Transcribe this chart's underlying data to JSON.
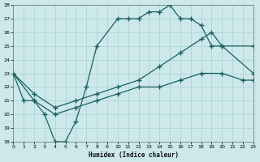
{
  "xlabel": "Humidex (Indice chaleur)",
  "bg_color": "#cce8ea",
  "grid_color": "#aad0d4",
  "line_color": "#1a6060",
  "xlim": [
    0,
    23
  ],
  "ylim": [
    18,
    28
  ],
  "xticks": [
    0,
    1,
    2,
    3,
    4,
    5,
    6,
    7,
    8,
    9,
    10,
    11,
    12,
    13,
    14,
    15,
    16,
    17,
    18,
    19,
    20,
    21,
    22,
    23
  ],
  "yticks": [
    18,
    19,
    20,
    21,
    22,
    23,
    24,
    25,
    26,
    27,
    28
  ],
  "line1_x": [
    0,
    1,
    2,
    3,
    4,
    5,
    6,
    7,
    8,
    10,
    11,
    12,
    13,
    14,
    15,
    16,
    17,
    18,
    19,
    20,
    23
  ],
  "line1_y": [
    23,
    21,
    21,
    20,
    18,
    18,
    19.5,
    22,
    25,
    27,
    27,
    27,
    27.5,
    27.5,
    28,
    27,
    27,
    26.5,
    25,
    25,
    23
  ],
  "line2_x": [
    0,
    2,
    4,
    6,
    8,
    10,
    12,
    14,
    16,
    18,
    19,
    20,
    23
  ],
  "line2_y": [
    23,
    21.5,
    20.5,
    21,
    21.5,
    22,
    22.5,
    23.5,
    24.5,
    25.5,
    26,
    25,
    25
  ],
  "line3_x": [
    0,
    2,
    4,
    6,
    8,
    10,
    12,
    14,
    16,
    18,
    20,
    22,
    23
  ],
  "line3_y": [
    23,
    21,
    20,
    20.5,
    21,
    21.5,
    22,
    22,
    22.5,
    23,
    23,
    22.5,
    22.5
  ]
}
